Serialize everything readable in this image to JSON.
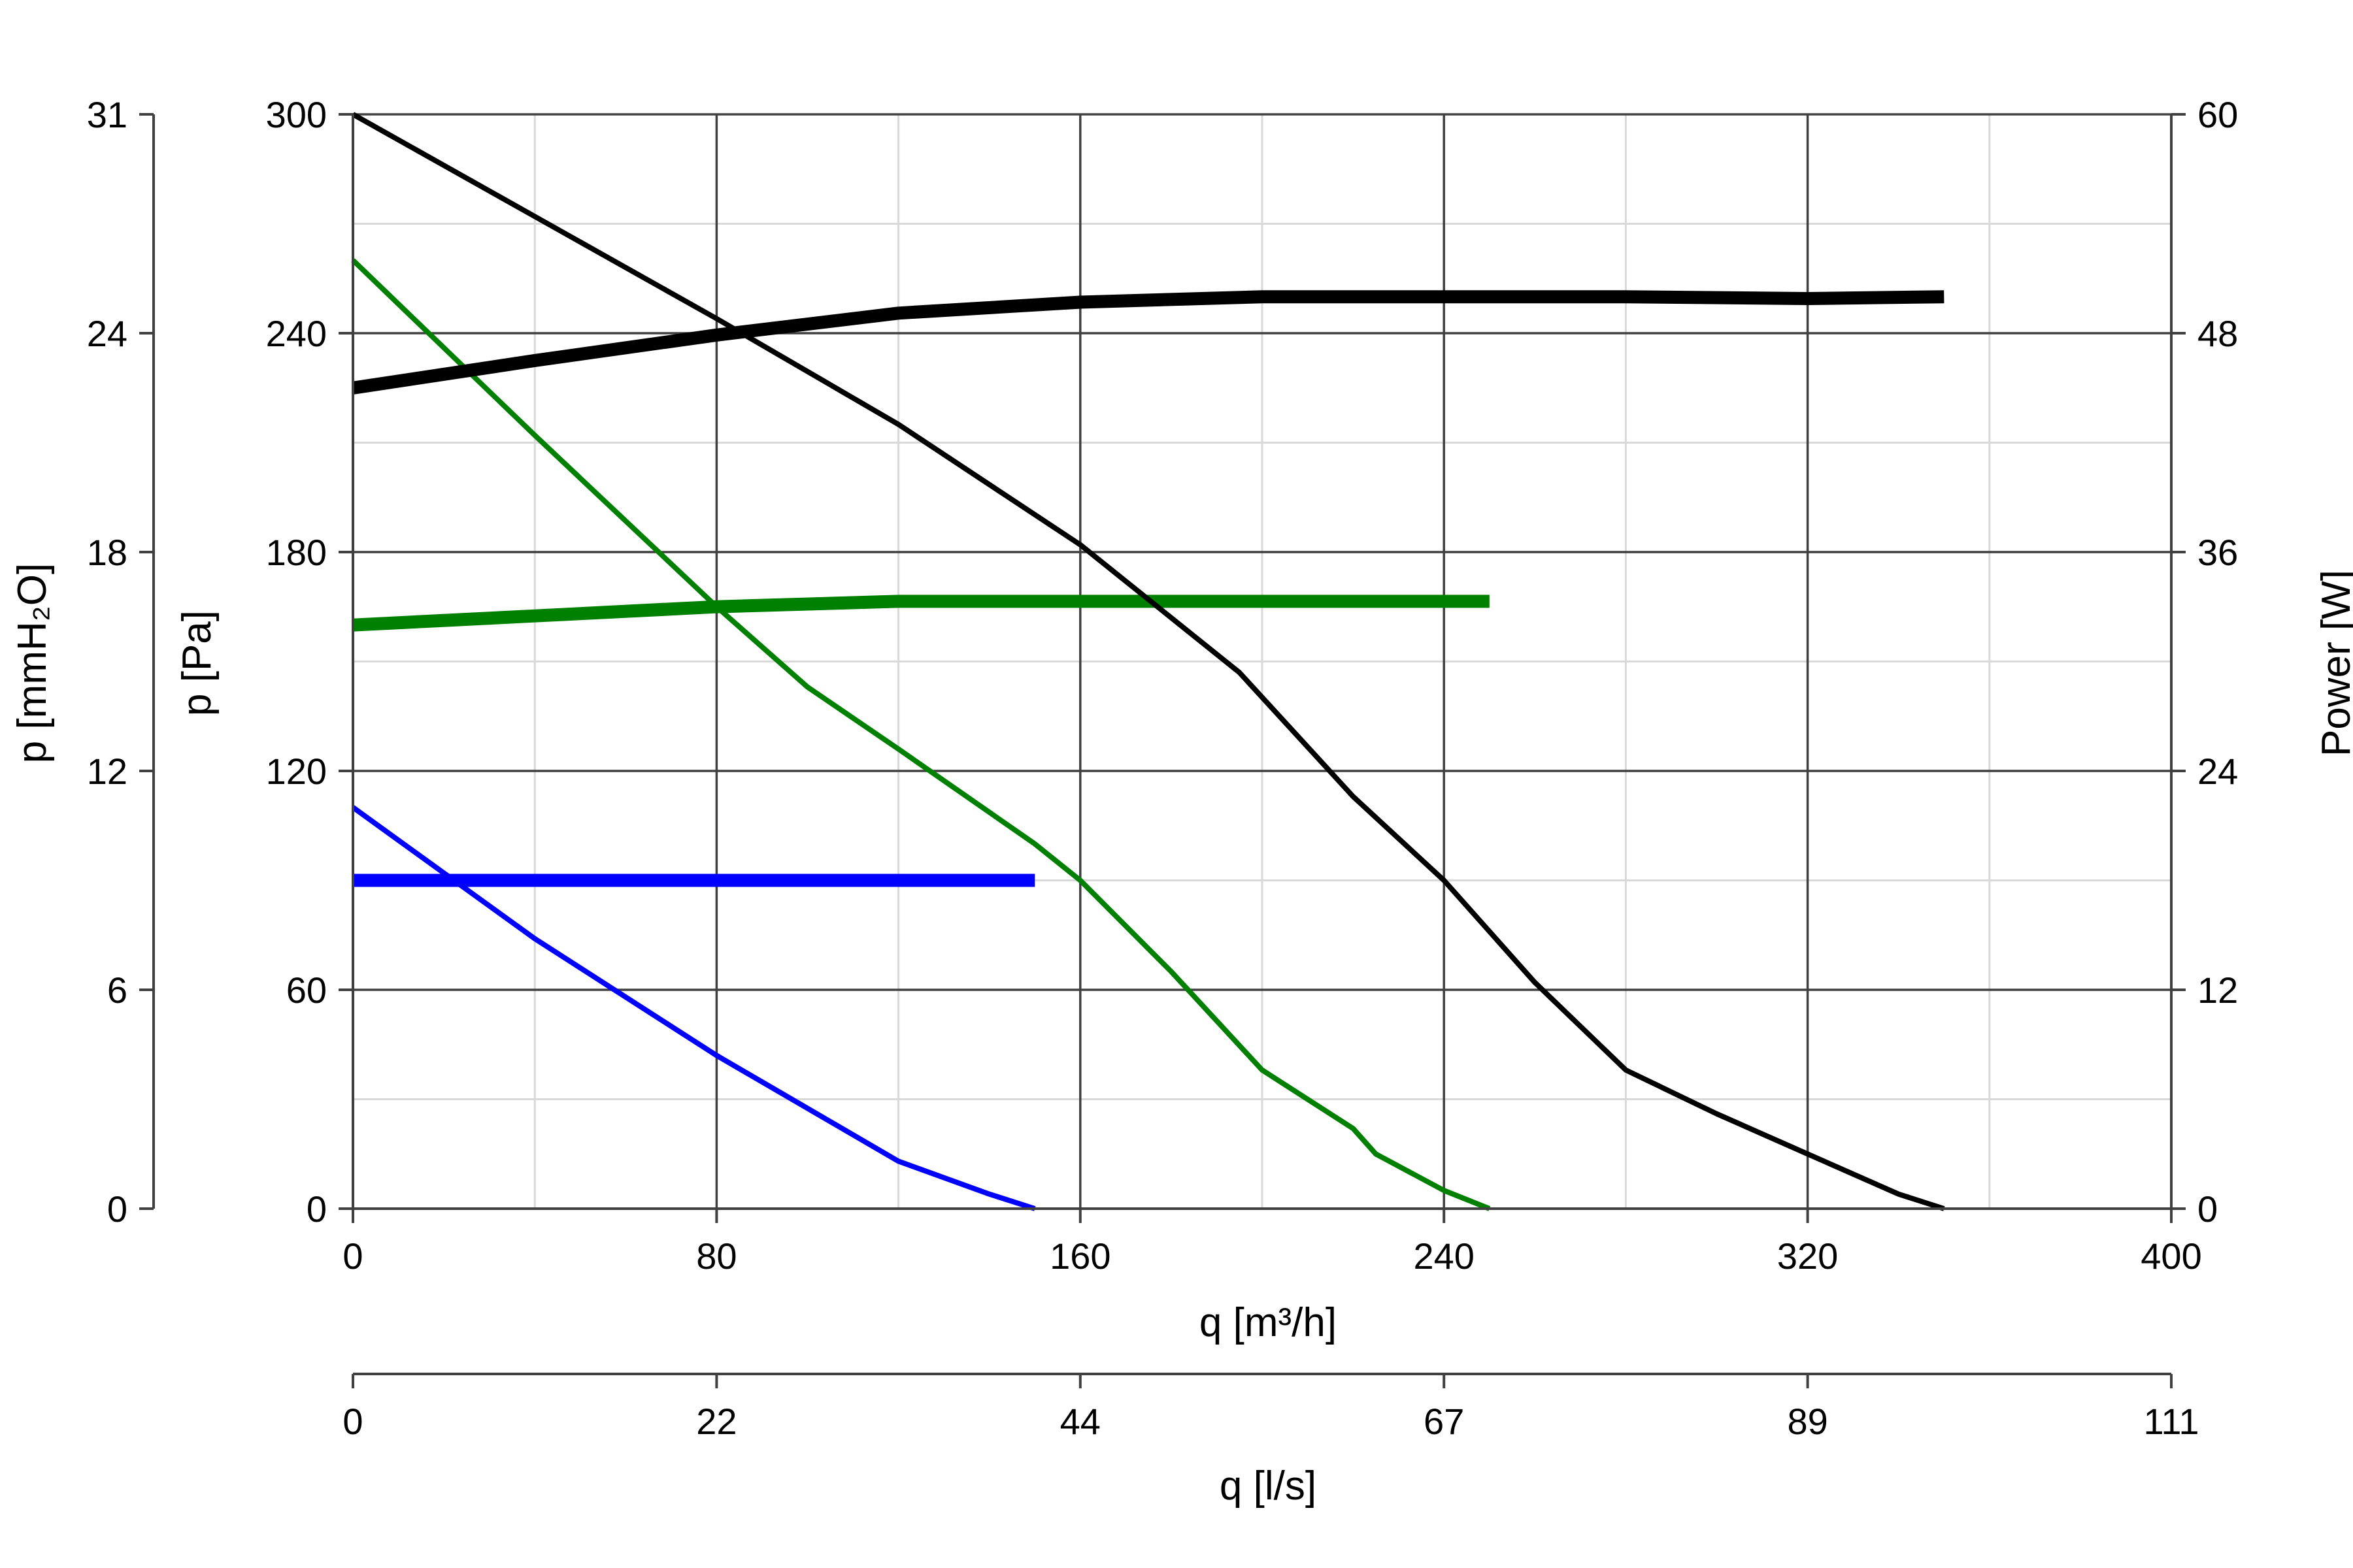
{
  "chart_data": {
    "type": "line",
    "title": "",
    "x_axis": {
      "label": "q [m³/h]",
      "range": [
        0,
        400
      ],
      "ticks": [
        "0",
        "80",
        "160",
        "240",
        "320",
        "400"
      ],
      "tick_values": [
        0,
        80,
        160,
        240,
        320,
        400
      ]
    },
    "x_axis_secondary": {
      "label": "q [l/s]",
      "range": [
        0,
        111
      ],
      "ticks": [
        "0",
        "22",
        "44",
        "67",
        "89",
        "111"
      ]
    },
    "y_axis_left": {
      "label": "p [Pa]",
      "range": [
        0,
        300
      ],
      "ticks": [
        "0",
        "60",
        "120",
        "180",
        "240",
        "300"
      ],
      "tick_values": [
        0,
        60,
        120,
        180,
        240,
        300
      ]
    },
    "y_axis_left_outer": {
      "label": "p [mmH₂O]",
      "range": [
        0,
        31
      ],
      "ticks": [
        "0",
        "6",
        "12",
        "18",
        "24",
        "31"
      ]
    },
    "y_axis_right": {
      "label": "Power [W]",
      "range": [
        0,
        60
      ],
      "ticks": [
        "0",
        "12",
        "24",
        "36",
        "48",
        "60"
      ],
      "tick_values": [
        0,
        12,
        24,
        36,
        48,
        60
      ]
    },
    "grid": true,
    "legend": "none",
    "series": [
      {
        "curve": "pressure",
        "axis": "left",
        "color": "#0000ff",
        "x": [
          0,
          40,
          80,
          120,
          140,
          150
        ],
        "y": [
          110,
          74,
          42,
          13,
          4,
          0
        ]
      },
      {
        "curve": "power",
        "axis": "right",
        "color": "#0000ff",
        "x": [
          0,
          150
        ],
        "y": [
          18,
          18
        ]
      },
      {
        "curve": "pressure",
        "axis": "left",
        "color": "#008000",
        "x": [
          0,
          40,
          80,
          100,
          120,
          150,
          160,
          180,
          200,
          210,
          220,
          225,
          240,
          250
        ],
        "y": [
          260,
          212,
          165,
          143,
          126,
          100,
          90,
          65,
          38,
          30,
          22,
          15,
          5,
          0
        ]
      },
      {
        "curve": "power",
        "axis": "right",
        "color": "#008000",
        "x": [
          0,
          40,
          80,
          120,
          160,
          200,
          250
        ],
        "y": [
          32,
          32.5,
          33,
          33.3,
          33.3,
          33.3,
          33.3
        ]
      },
      {
        "curve": "pressure",
        "axis": "left",
        "color": "#000000",
        "x": [
          0,
          40,
          80,
          120,
          160,
          195,
          220,
          240,
          260,
          280,
          300,
          320,
          340,
          350
        ],
        "y": [
          300,
          272,
          244,
          215,
          182,
          147,
          113,
          90,
          62,
          38,
          26,
          15,
          4,
          0
        ]
      },
      {
        "curve": "power",
        "axis": "right",
        "color": "#000000",
        "x": [
          0,
          40,
          80,
          120,
          160,
          200,
          240,
          280,
          320,
          350
        ],
        "y": [
          45,
          46.5,
          47.9,
          49.1,
          49.7,
          50,
          50,
          50,
          49.9,
          50
        ]
      }
    ]
  }
}
